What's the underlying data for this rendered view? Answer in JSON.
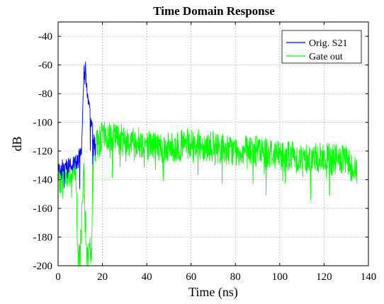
{
  "chart_data": {
    "type": "line",
    "title": "Time Domain Response",
    "xlabel": "Time (ns)",
    "ylabel": "dB",
    "xlim": [
      0,
      140
    ],
    "ylim": [
      -200,
      -30
    ],
    "xticks": [
      0,
      20,
      40,
      60,
      80,
      100,
      120,
      140
    ],
    "yticks": [
      -200,
      -180,
      -160,
      -140,
      -120,
      -100,
      -80,
      -60,
      -40
    ],
    "grid": true,
    "legend_position": "top-right",
    "series": [
      {
        "name": "Orig. S21",
        "color": "#0000ff",
        "x": [
          0,
          8,
          9,
          10,
          10.5,
          11,
          11.5,
          11.8,
          12,
          12.3,
          12.6,
          13,
          13.5,
          14,
          14.5,
          15,
          15.5,
          16,
          16.5,
          17
        ],
        "y": [
          -133,
          -128,
          -126,
          -122,
          -118,
          -100,
          -78,
          -60,
          -53,
          -60,
          -70,
          -78,
          -85,
          -92,
          -95,
          -100,
          -105,
          -110,
          -114,
          -120
        ]
      },
      {
        "name": "Gate out",
        "color": "#00ff00",
        "x": [
          0,
          8,
          8.5,
          9,
          10,
          11,
          11.5,
          12,
          13,
          14,
          15,
          15.5,
          16,
          20,
          30,
          40,
          50,
          60,
          70,
          80,
          90,
          100,
          110,
          120,
          130,
          135
        ],
        "y": [
          -140,
          -133,
          -165,
          -200,
          -190,
          -150,
          -135,
          -160,
          -195,
          -185,
          -200,
          -140,
          -118,
          -110,
          -112,
          -115,
          -118,
          -115,
          -117,
          -120,
          -120,
          -122,
          -125,
          -125,
          -127,
          -135
        ]
      }
    ]
  }
}
